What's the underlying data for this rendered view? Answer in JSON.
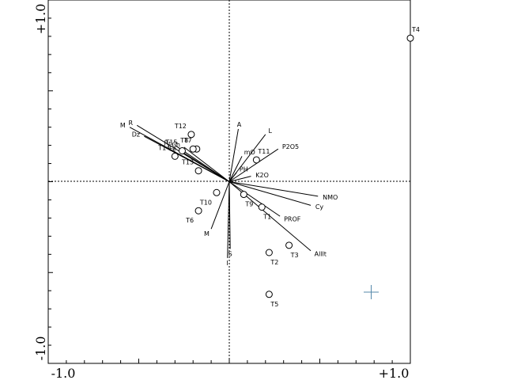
{
  "chart_data": {
    "type": "scatter",
    "xlim": [
      -1.0,
      1.0
    ],
    "ylim": [
      -1.0,
      1.0
    ],
    "x_tick_labels": [
      "-1.0",
      "+1.0"
    ],
    "y_tick_labels": [
      "+1.0",
      "-1.0"
    ],
    "grid": false,
    "zero_lines": "dotted",
    "samples": [
      {
        "label": "T1",
        "x": 0.18,
        "y": -0.14
      },
      {
        "label": "T2",
        "x": 0.22,
        "y": -0.39
      },
      {
        "label": "T3",
        "x": 0.33,
        "y": -0.35
      },
      {
        "label": "T4",
        "x": 1.0,
        "y": 0.79
      },
      {
        "label": "T5",
        "x": 0.22,
        "y": -0.62
      },
      {
        "label": "T6",
        "x": -0.17,
        "y": -0.16
      },
      {
        "label": "T7",
        "x": -0.18,
        "y": 0.18
      },
      {
        "label": "T8",
        "x": -0.2,
        "y": 0.18
      },
      {
        "label": "T9",
        "x": 0.08,
        "y": -0.07
      },
      {
        "label": "T10",
        "x": -0.07,
        "y": -0.06
      },
      {
        "label": "T11",
        "x": 0.15,
        "y": 0.12
      },
      {
        "label": "T12",
        "x": -0.21,
        "y": 0.26
      },
      {
        "label": "T13",
        "x": -0.17,
        "y": 0.06
      },
      {
        "label": "T14",
        "x": -0.3,
        "y": 0.14
      },
      {
        "label": "T15",
        "x": -0.26,
        "y": 0.17
      }
    ],
    "variables": [
      {
        "label": "A",
        "x": 0.05,
        "y": 0.29
      },
      {
        "label": "L",
        "x": 0.2,
        "y": 0.26
      },
      {
        "label": "P2O5",
        "x": 0.27,
        "y": 0.18
      },
      {
        "label": "mO",
        "x": 0.07,
        "y": 0.14
      },
      {
        "label": "PH",
        "x": 0.04,
        "y": 0.05
      },
      {
        "label": "K2O",
        "x": 0.12,
        "y": 0.03
      },
      {
        "label": "NMO",
        "x": 0.49,
        "y": -0.08
      },
      {
        "label": "Cy",
        "x": 0.45,
        "y": -0.13
      },
      {
        "label": "PROF",
        "x": 0.28,
        "y": -0.19
      },
      {
        "label": "Alllt",
        "x": 0.45,
        "y": -0.38
      },
      {
        "label": "S",
        "x": 0.005,
        "y": -0.37
      },
      {
        "label": "I",
        "x": -0.01,
        "y": -0.42
      },
      {
        "label": "M",
        "x": -0.1,
        "y": -0.26
      },
      {
        "label": "M",
        "x": -0.55,
        "y": 0.3
      },
      {
        "label": "R",
        "x": -0.51,
        "y": 0.31
      },
      {
        "label": "Dz",
        "x": -0.47,
        "y": 0.25
      },
      {
        "label": "Rr",
        "x": -0.3,
        "y": 0.2
      },
      {
        "label": "Fe",
        "x": -0.27,
        "y": 0.17
      },
      {
        "label": "Ch",
        "x": -0.25,
        "y": 0.19
      }
    ],
    "marker_color": "#5588aa"
  }
}
